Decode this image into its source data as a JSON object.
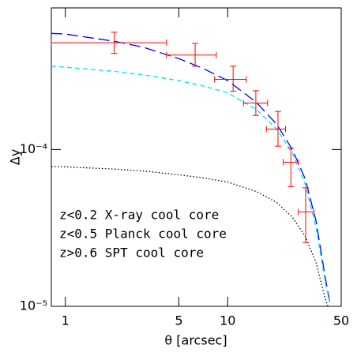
{
  "chart_data": {
    "type": "line",
    "xlabel": "θ [arcsec]",
    "ylabel": "Δy",
    "xscale": "log",
    "yscale": "log",
    "xlim": [
      0.82,
      50
    ],
    "ylim": [
      1e-05,
      0.0008
    ],
    "xticks": [
      1,
      5,
      10,
      50
    ],
    "yticks": [
      {
        "value": 1e-05,
        "label": "10⁻⁵"
      },
      {
        "value": 0.0001,
        "label": "10⁻⁴"
      }
    ],
    "legend": "left",
    "x": [
      0.82,
      1,
      2,
      3,
      5,
      7,
      10,
      15,
      20,
      25,
      30,
      35,
      40,
      43
    ],
    "series": [
      {
        "name": "z<0.2 X-ray cool core",
        "color": "#0000ff",
        "dash": "dashed",
        "values": [
          0.00055,
          0.000545,
          0.00049,
          0.00045,
          0.00038,
          0.00033,
          0.000275,
          0.0002,
          0.000145,
          0.0001,
          6.5e-05,
          3.5e-05,
          1.5e-05,
          1e-05
        ]
      },
      {
        "name": "z<0.5 Planck cool core",
        "color": "#00e5ee",
        "dash": "short-dashed",
        "values": [
          0.00034,
          0.000335,
          0.000315,
          0.0003,
          0.000275,
          0.000255,
          0.00023,
          0.00018,
          0.000135,
          9.5e-05,
          6e-05,
          3.2e-05,
          1.4e-05,
          1e-05
        ]
      },
      {
        "name": "z>0.6 SPT cool core",
        "color": "#000000",
        "dash": "dotted",
        "values": [
          7.8e-05,
          7.75e-05,
          7.5e-05,
          7.3e-05,
          6.9e-05,
          6.6e-05,
          6.2e-05,
          5.4e-05,
          4.6e-05,
          3.7e-05,
          2.8e-05,
          1.9e-05,
          1.1e-05,
          9e-06
        ]
      }
    ],
    "points": {
      "color": "#ff0000",
      "x": [
        2,
        6.3,
        10.8,
        14.9,
        20.4,
        24.5,
        30.2
      ],
      "values": [
        0.00048,
        0.0004,
        0.00028,
        0.000198,
        0.000135,
        8.3e-05,
        4e-05
      ],
      "x_low": [
        0.82,
        4.2,
        8.3,
        12.5,
        17.3,
        22,
        27.2
      ],
      "x_high": [
        4.2,
        8.5,
        13,
        17.6,
        22.7,
        27.2,
        34
      ],
      "y_low": [
        0.00041,
        0.00034,
        0.000235,
        0.000165,
        0.000105,
        5.8e-05,
        2.55e-05
      ],
      "y_high": [
        0.00056,
        0.000475,
        0.00034,
        0.000237,
        0.000175,
        0.000102,
        5.7e-05
      ]
    }
  }
}
